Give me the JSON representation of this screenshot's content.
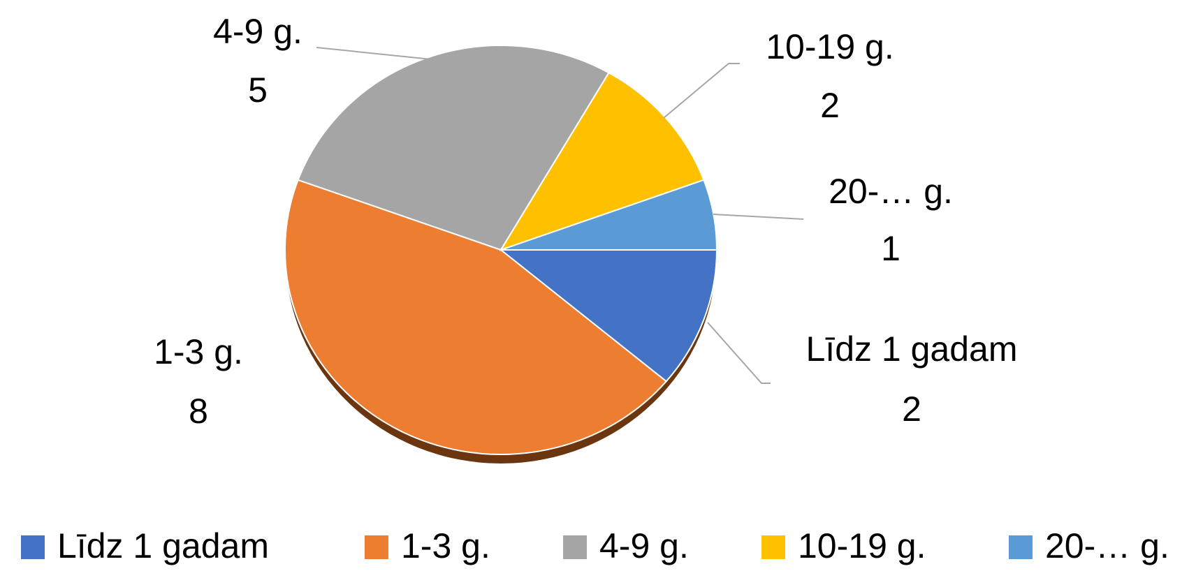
{
  "chart_data": {
    "type": "pie",
    "categories": [
      "Līdz 1 gadam",
      "1-3 g.",
      "4-9 g.",
      "10-19 g.",
      "20-… g."
    ],
    "values": [
      2,
      8,
      5,
      2,
      1
    ],
    "colors": [
      "#4472c4",
      "#ed7d31",
      "#a5a5a5",
      "#ffc000",
      "#5b9bd5"
    ],
    "legend": "bottom"
  }
}
